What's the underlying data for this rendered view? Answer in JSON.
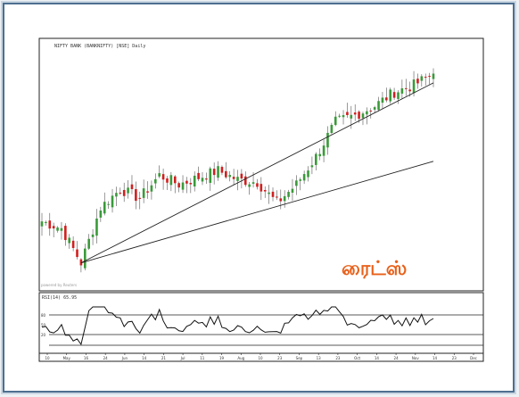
{
  "colors": {
    "up": "#3a9a3a",
    "down": "#d01f1f",
    "wick": "#555555",
    "trendline": "#222222",
    "rsi_line": "#111111",
    "watermark": "#e8611a",
    "frame": "#4d6f8f"
  },
  "header": {
    "title": "NIFTY BANK (BANKNIFTY) [NSE] Daily"
  },
  "watermark": {
    "text": "ரைட்ஸ்"
  },
  "price_caption": "powered by Reuters",
  "rsi_panel": {
    "label": "RSI(14) 65.95",
    "levels": [
      "80",
      "50",
      "20"
    ]
  },
  "x_axis": {
    "ticks": [
      "10",
      "May",
      "16",
      "24",
      "Jun",
      "14",
      "21",
      "Jul",
      "11",
      "19",
      "Aug",
      "10",
      "23",
      "Sep",
      "13",
      "23",
      "Oct",
      "14",
      "24",
      "Nov",
      "14",
      "23",
      "Dec"
    ]
  },
  "chart_data": {
    "type": "candlestick",
    "title": "",
    "x_ticks": [
      "10",
      "May",
      "16",
      "24",
      "Jun",
      "14",
      "21",
      "Jul",
      "11",
      "19",
      "Aug",
      "10",
      "23",
      "Sep",
      "13",
      "23",
      "Oct",
      "14",
      "24",
      "Nov",
      "14",
      "23",
      "Dec"
    ],
    "trend": [
      {
        "date": "10",
        "close": 52
      },
      {
        "date": "May",
        "close": 49
      },
      {
        "date": "16",
        "close": 34
      },
      {
        "date": "24",
        "close": 58
      },
      {
        "date": "Jun",
        "close": 66
      },
      {
        "date": "14",
        "close": 62
      },
      {
        "date": "21",
        "close": 72
      },
      {
        "date": "Jul",
        "close": 68
      },
      {
        "date": "11",
        "close": 71
      },
      {
        "date": "19",
        "close": 74
      },
      {
        "date": "Aug",
        "close": 70
      },
      {
        "date": "10",
        "close": 69
      },
      {
        "date": "23",
        "close": 60
      },
      {
        "date": "Sep",
        "close": 68
      },
      {
        "date": "13",
        "close": 80
      },
      {
        "date": "23",
        "close": 95
      },
      {
        "date": "Oct",
        "close": 98
      },
      {
        "date": "14",
        "close": 102
      },
      {
        "date": "24",
        "close": 108
      },
      {
        "date": "Nov",
        "close": 111
      },
      {
        "date": "14",
        "close": 116
      }
    ],
    "trendlines": [
      {
        "from": {
          "date": "16",
          "value": 34
        },
        "to": {
          "date": "14",
          "value": 112
        }
      },
      {
        "from": {
          "date": "16",
          "value": 34
        },
        "to": {
          "date": "14",
          "value": 78
        }
      }
    ],
    "rsi_levels": [
      80,
      50,
      20
    ],
    "rsi_last": 65.95
  }
}
